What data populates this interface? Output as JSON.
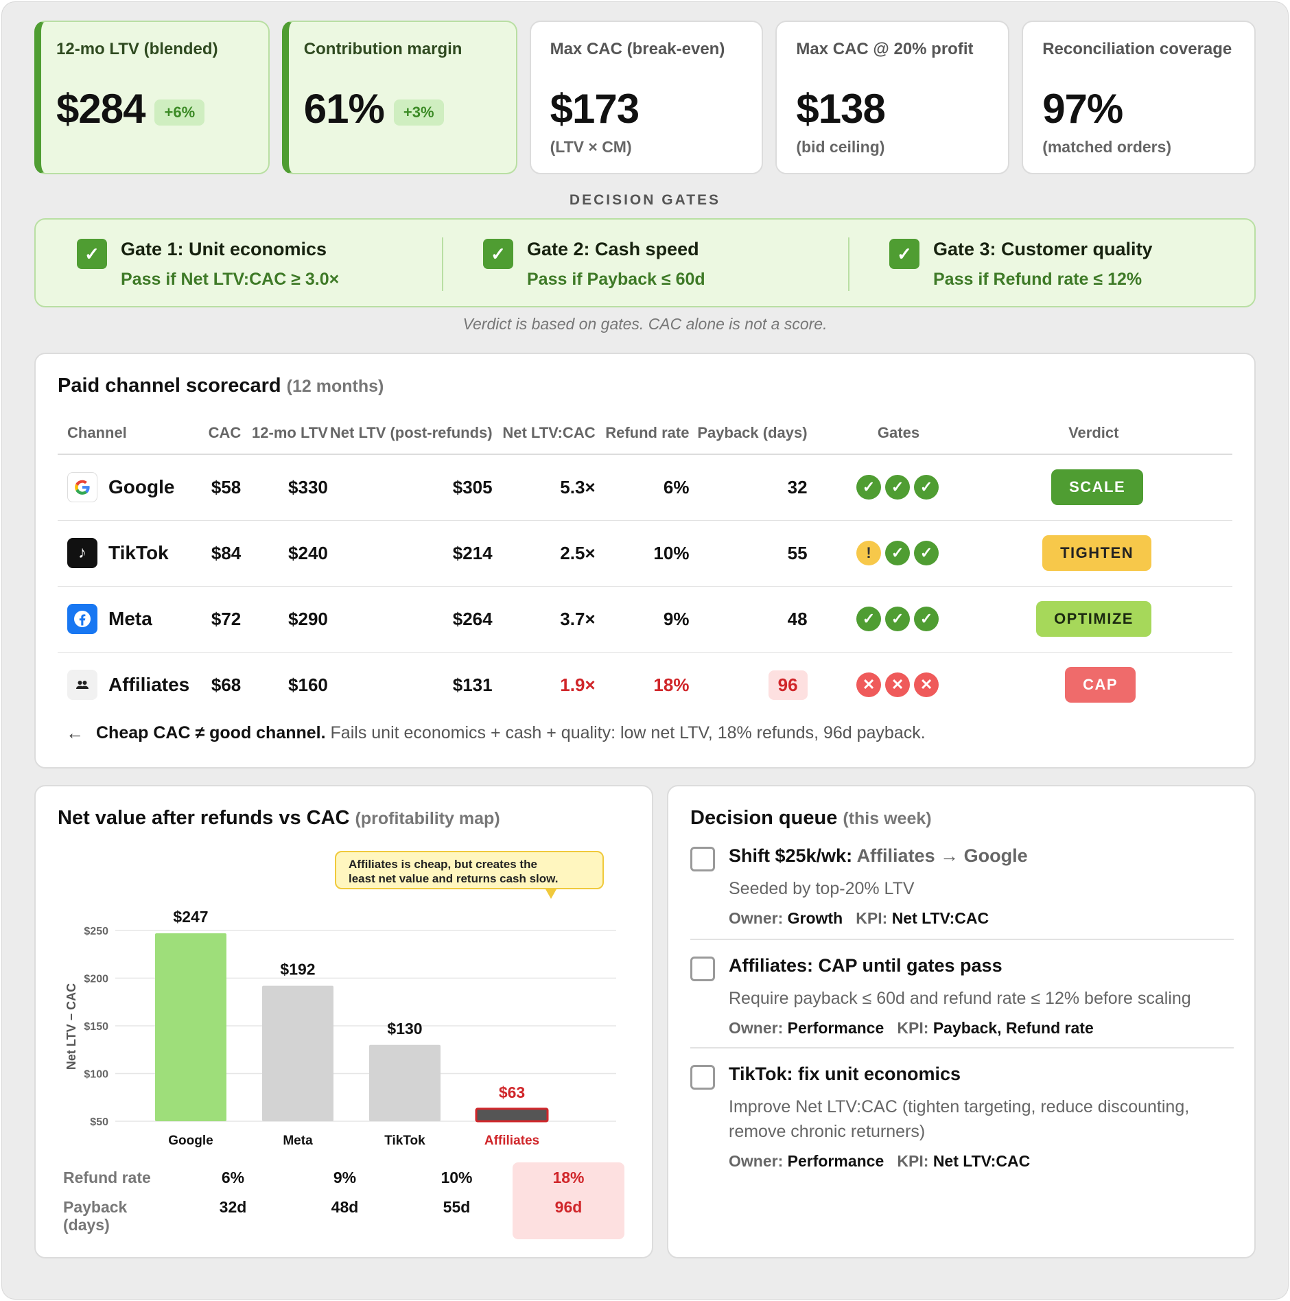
{
  "kpis": [
    {
      "label": "12-mo LTV (blended)",
      "value": "$284",
      "delta": "+6%",
      "sub": "",
      "good": true
    },
    {
      "label": "Contribution margin",
      "value": "61%",
      "delta": "+3%",
      "sub": "",
      "good": true
    },
    {
      "label": "Max CAC (break-even)",
      "value": "$173",
      "delta": "",
      "sub": "(LTV × CM)",
      "good": false
    },
    {
      "label": "Max CAC @ 20% profit",
      "value": "$138",
      "delta": "",
      "sub": "(bid ceiling)",
      "good": false
    },
    {
      "label": "Reconciliation coverage",
      "value": "97%",
      "delta": "",
      "sub": "(matched orders)",
      "good": false
    }
  ],
  "gates": {
    "title": "DECISION GATES",
    "items": [
      {
        "title": "Gate 1: Unit economics",
        "rule": "Pass if Net LTV:CAC ≥ 3.0×"
      },
      {
        "title": "Gate 2: Cash speed",
        "rule": "Pass if Payback ≤ 60d"
      },
      {
        "title": "Gate 3: Customer quality",
        "rule": "Pass if Refund rate ≤ 12%"
      }
    ],
    "note": "Verdict is based on gates. CAC alone is not a score."
  },
  "scorecard": {
    "title": "Paid channel scorecard",
    "subtitle": "(12 months)",
    "columns": [
      "Channel",
      "CAC",
      "12-mo LTV",
      "Net LTV (post-refunds)",
      "Net LTV:CAC",
      "Refund rate",
      "Payback (days)",
      "Gates",
      "Verdict"
    ],
    "rows": [
      {
        "channel": "Google",
        "logo": "google-logo",
        "cac": "$58",
        "ltv": "$330",
        "net_ltv": "$305",
        "ratio": "5.3×",
        "refund": "6%",
        "payback": "32",
        "gates": [
          "pass",
          "pass",
          "pass"
        ],
        "verdict": "SCALE",
        "verdict_style": "scale",
        "flag": false
      },
      {
        "channel": "TikTok",
        "logo": "tiktok-logo",
        "cac": "$84",
        "ltv": "$240",
        "net_ltv": "$214",
        "ratio": "2.5×",
        "refund": "10%",
        "payback": "55",
        "gates": [
          "warn",
          "pass",
          "pass"
        ],
        "verdict": "TIGHTEN",
        "verdict_style": "tighten",
        "flag": false
      },
      {
        "channel": "Meta",
        "logo": "meta-logo",
        "cac": "$72",
        "ltv": "$290",
        "net_ltv": "$264",
        "ratio": "3.7×",
        "refund": "9%",
        "payback": "48",
        "gates": [
          "pass",
          "pass",
          "pass"
        ],
        "verdict": "OPTIMIZE",
        "verdict_style": "optimize",
        "flag": false
      },
      {
        "channel": "Affiliates",
        "logo": "affiliates-logo",
        "cac": "$68",
        "ltv": "$160",
        "net_ltv": "$131",
        "ratio": "1.9×",
        "refund": "18%",
        "payback": "96",
        "gates": [
          "fail",
          "fail",
          "fail"
        ],
        "verdict": "CAP",
        "verdict_style": "cap",
        "flag": true
      }
    ],
    "note_bold": "Cheap CAC ≠ good channel.",
    "note_rest": "Fails unit economics + cash + quality: low net LTV, 18% refunds, 96d payback."
  },
  "chart_card": {
    "title": "Net value after refunds vs CAC",
    "subtitle": "(profitability map)",
    "annotation_line1": "Affiliates is cheap, but creates the",
    "annotation_line2": "least net value and returns cash slow.",
    "table": {
      "refund_label": "Refund rate",
      "payback_label_1": "Payback",
      "payback_label_2": "(days)",
      "refund": [
        "6%",
        "9%",
        "10%",
        "18%"
      ],
      "payback": [
        "32d",
        "48d",
        "55d",
        "96d"
      ],
      "highlight_index": 3
    }
  },
  "chart_data": {
    "type": "bar",
    "categories": [
      "Google",
      "Meta",
      "TikTok",
      "Affiliates"
    ],
    "values": [
      247,
      192,
      130,
      63
    ],
    "value_labels": [
      "$247",
      "$192",
      "$130",
      "$63"
    ],
    "ylabel": "Net LTV − CAC",
    "yticks": [
      50,
      100,
      150,
      200,
      250
    ],
    "ytick_labels": [
      "$50",
      "$100",
      "$150",
      "$200",
      "$250"
    ],
    "ylim": [
      50,
      250
    ],
    "grid": true,
    "colors": [
      "#9ede7a",
      "#d3d3d3",
      "#d3d3d3",
      "#555555"
    ],
    "highlight_index": 3,
    "highlight_color": "#d0262a"
  },
  "queue": {
    "title": "Decision queue",
    "subtitle": "(this week)",
    "items": [
      {
        "title_main": "Shift $25k/wk:",
        "title_muted": "Affiliates → Google",
        "desc": "Seeded by top-20% LTV",
        "owner_label": "Owner:",
        "owner": "Growth",
        "kpi_label": "KPI:",
        "kpi": "Net LTV:CAC"
      },
      {
        "title_main": "Affiliates: CAP until gates pass",
        "title_muted": "",
        "desc": "Require payback ≤ 60d and refund rate ≤ 12% before scaling",
        "owner_label": "Owner:",
        "owner": "Performance",
        "kpi_label": "KPI:",
        "kpi": "Payback, Refund rate"
      },
      {
        "title_main": "TikTok: fix unit economics",
        "title_muted": "",
        "desc": "Improve Net LTV:CAC (tighten targeting, reduce discounting, remove chronic returners)",
        "owner_label": "Owner:",
        "owner": "Performance",
        "kpi_label": "KPI:",
        "kpi": "Net LTV:CAC"
      }
    ]
  }
}
